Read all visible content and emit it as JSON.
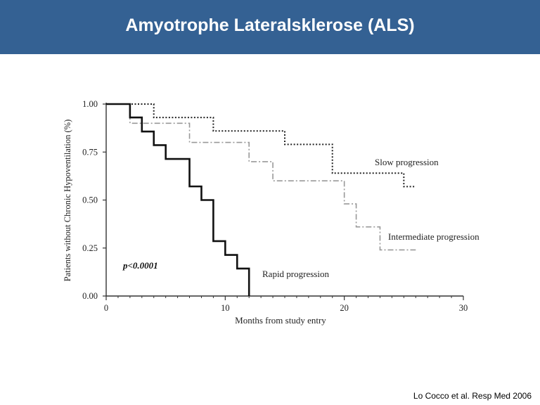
{
  "slide": {
    "title": "Amyotrophe Lateralsklerose (ALS)",
    "header_color": "#346193",
    "citation": "Lo Cocco et al. Resp Med 2006"
  },
  "chart_data": {
    "type": "line",
    "subtype": "kaplan-meier step",
    "xlabel": "Months from study entry",
    "ylabel": "Patients without Chronic Hypoventilation (%)",
    "xlim": [
      0,
      30
    ],
    "ylim": [
      0,
      1
    ],
    "x_ticks": [
      0,
      10,
      20,
      30
    ],
    "x_tick_labels": [
      "0",
      "10",
      "20",
      "30"
    ],
    "y_ticks": [
      0,
      0.25,
      0.5,
      0.75,
      1
    ],
    "y_tick_labels": [
      "0.00",
      "0.25",
      "0.50",
      "0.75",
      "1.00"
    ],
    "grid": false,
    "annotation": "p<0.0001",
    "series": [
      {
        "name": "Slow progression",
        "style": "dotted",
        "color": "#222222",
        "x": [
          0,
          4,
          9,
          15,
          19,
          25,
          26
        ],
        "y": [
          1.0,
          0.93,
          0.86,
          0.79,
          0.64,
          0.57,
          0.57
        ]
      },
      {
        "name": "Intermediate progression",
        "style": "dash-dot",
        "color": "#999999",
        "x": [
          0,
          2,
          7,
          12,
          14,
          20,
          21,
          23,
          26
        ],
        "y": [
          1.0,
          0.9,
          0.8,
          0.7,
          0.6,
          0.48,
          0.36,
          0.24,
          0.24
        ]
      },
      {
        "name": "Rapid progression",
        "style": "solid",
        "color": "#111111",
        "x": [
          0,
          2,
          3,
          4,
          5,
          7,
          8,
          9,
          10,
          11,
          12
        ],
        "y": [
          1.0,
          0.93,
          0.857,
          0.786,
          0.714,
          0.571,
          0.5,
          0.286,
          0.214,
          0.143,
          0.0
        ]
      }
    ]
  }
}
